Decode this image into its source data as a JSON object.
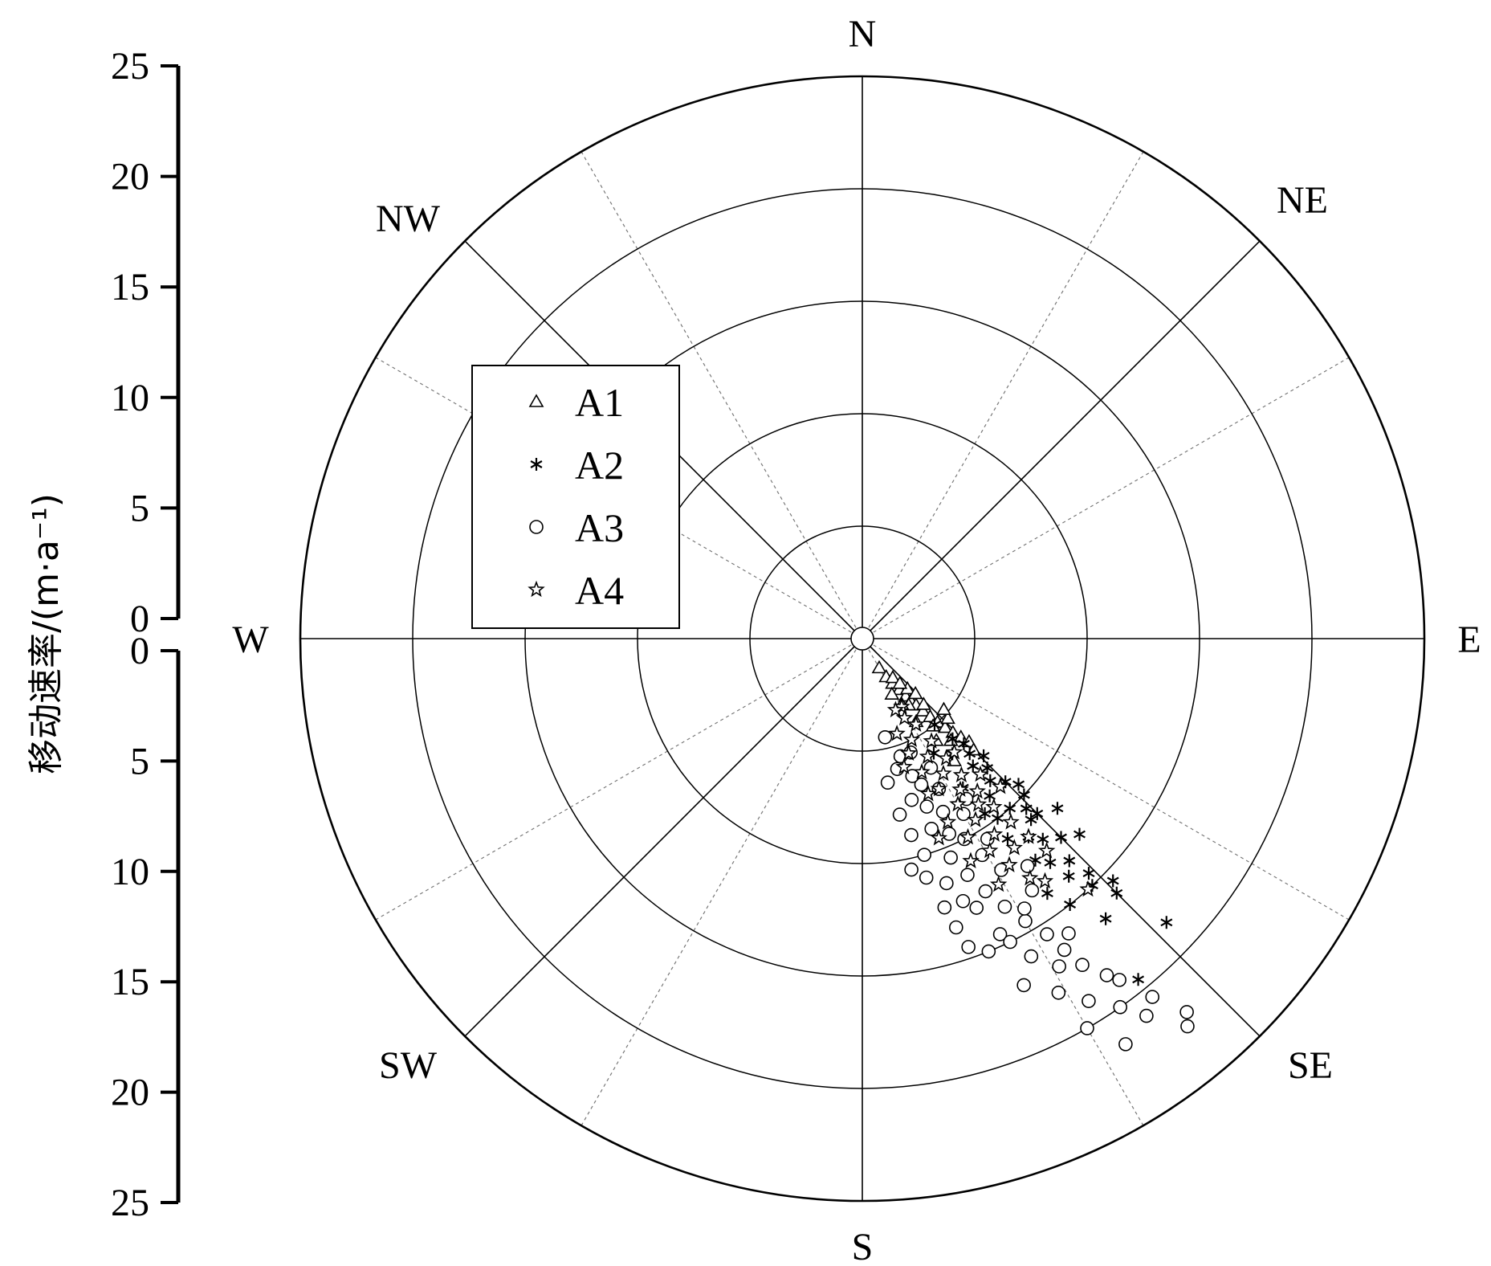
{
  "chart_data": {
    "type": "scatter",
    "coordinate_system": "polar",
    "ylabel": "移动速率/(m·a⁻¹)",
    "radius_range": [
      0,
      25
    ],
    "radius_ticks": [
      "0",
      "5",
      "10",
      "15",
      "20",
      "25"
    ],
    "directions": [
      "N",
      "NE",
      "E",
      "SE",
      "S",
      "SW",
      "W",
      "NW"
    ],
    "grid": true,
    "legend_placement": "upper-left",
    "series": [
      {
        "name": "A1",
        "marker": "triangle",
        "points": [
          [
            150,
            1.5
          ],
          [
            148,
            2.0
          ],
          [
            146,
            2.4
          ],
          [
            144,
            2.8
          ],
          [
            143,
            3.2
          ],
          [
            142,
            3.5
          ],
          [
            141,
            3.8
          ],
          [
            140,
            4.2
          ],
          [
            139,
            4.6
          ],
          [
            138,
            5.0
          ],
          [
            137,
            5.4
          ],
          [
            136,
            5.8
          ],
          [
            135,
            6.2
          ],
          [
            134,
            6.6
          ],
          [
            138,
            3.0
          ],
          [
            142,
            2.2
          ],
          [
            145,
            3.6
          ],
          [
            147,
            4.4
          ],
          [
            133,
            5.2
          ],
          [
            136,
            3.4
          ],
          [
            140,
            2.6
          ],
          [
            144,
            5.6
          ],
          [
            131,
            4.8
          ],
          [
            135,
            7.0
          ],
          [
            152,
            2.8
          ],
          [
            149,
            3.4
          ],
          [
            139,
            6.0
          ],
          [
            137,
            4.0
          ],
          [
            141,
            5.0
          ],
          [
            143,
            6.8
          ]
        ]
      },
      {
        "name": "A2",
        "marker": "asterisk",
        "points": [
          [
            140,
            5.0
          ],
          [
            138,
            6.0
          ],
          [
            137,
            7.0
          ],
          [
            136,
            8.0
          ],
          [
            135,
            9.0
          ],
          [
            134,
            10.0
          ],
          [
            136,
            10.5
          ],
          [
            137,
            11.0
          ],
          [
            138,
            12.0
          ],
          [
            135,
            12.5
          ],
          [
            137,
            13.5
          ],
          [
            136,
            14.5
          ],
          [
            134,
            15.5
          ],
          [
            135,
            16.0
          ],
          [
            139,
            16.5
          ],
          [
            133,
            18.5
          ],
          [
            141,
            19.5
          ],
          [
            142,
            6.5
          ],
          [
            139,
            7.5
          ],
          [
            141,
            9.0
          ],
          [
            143,
            10.0
          ],
          [
            140,
            11.5
          ],
          [
            142,
            12.5
          ],
          [
            144,
            14.0
          ],
          [
            138,
            8.5
          ],
          [
            140,
            13.0
          ],
          [
            133,
            9.5
          ],
          [
            135,
            11.0
          ],
          [
            146,
            8.0
          ],
          [
            144,
            11.0
          ],
          [
            139,
            14.0
          ],
          [
            132,
            13.0
          ],
          [
            137,
            15.0
          ],
          [
            148,
            6.0
          ],
          [
            145,
            9.5
          ],
          [
            134,
            7.5
          ],
          [
            131,
            11.5
          ],
          [
            142,
            15.0
          ],
          [
            136,
            6.5
          ],
          [
            139,
            10.0
          ]
        ]
      },
      {
        "name": "A3",
        "marker": "circle",
        "points": [
          [
            167,
            4.5
          ],
          [
            165,
            6.0
          ],
          [
            163,
            7.5
          ],
          [
            160,
            9.0
          ],
          [
            158,
            10.5
          ],
          [
            156,
            11.5
          ],
          [
            154,
            12.5
          ],
          [
            152,
            13.5
          ],
          [
            150,
            14.5
          ],
          [
            148,
            15.5
          ],
          [
            147,
            16.5
          ],
          [
            146,
            17.5
          ],
          [
            144,
            18.5
          ],
          [
            143,
            19.0
          ],
          [
            145,
            20.0
          ],
          [
            141,
            20.5
          ],
          [
            139,
            22.0
          ],
          [
            140,
            22.5
          ],
          [
            143,
            21.0
          ],
          [
            147,
            21.5
          ],
          [
            170,
            6.5
          ],
          [
            168,
            8.0
          ],
          [
            162,
            5.5
          ],
          [
            158,
            7.0
          ],
          [
            155,
            8.5
          ],
          [
            153,
            10.0
          ],
          [
            151,
            11.0
          ],
          [
            149,
            12.0
          ],
          [
            157,
            13.0
          ],
          [
            155,
            14.5
          ],
          [
            152,
            16.0
          ],
          [
            149,
            17.0
          ],
          [
            161,
            11.5
          ],
          [
            159,
            12.5
          ],
          [
            164,
            10.0
          ],
          [
            166,
            9.0
          ],
          [
            160,
            6.5
          ],
          [
            156,
            9.5
          ],
          [
            153,
            7.5
          ],
          [
            150,
            9.0
          ],
          [
            148,
            10.5
          ],
          [
            154,
            15.0
          ],
          [
            151,
            18.0
          ],
          [
            148,
            19.0
          ],
          [
            145,
            16.0
          ],
          [
            158,
            15.0
          ],
          [
            162,
            13.5
          ],
          [
            146,
            13.5
          ],
          [
            144,
            12.5
          ],
          [
            157,
            5.5
          ],
          [
            163,
            12.5
          ],
          [
            150,
            20.0
          ],
          [
            165,
            11.0
          ],
          [
            152,
            6.5
          ],
          [
            159,
            8.0
          ],
          [
            147,
            8.5
          ],
          [
            155,
            17.0
          ],
          [
            149,
            14.0
          ],
          [
            168,
            10.5
          ],
          [
            161,
            14.5
          ]
        ]
      },
      {
        "name": "A4",
        "marker": "star",
        "points": [
          [
            150,
            3.5
          ],
          [
            148,
            4.5
          ],
          [
            146,
            5.5
          ],
          [
            145,
            6.5
          ],
          [
            144,
            7.5
          ],
          [
            143,
            8.5
          ],
          [
            142,
            9.5
          ],
          [
            141,
            10.5
          ],
          [
            140,
            11.5
          ],
          [
            139,
            12.5
          ],
          [
            143,
            13.5
          ],
          [
            138,
            15.0
          ],
          [
            152,
            4.0
          ],
          [
            154,
            5.0
          ],
          [
            151,
            6.0
          ],
          [
            149,
            7.0
          ],
          [
            147,
            8.0
          ],
          [
            145,
            9.0
          ],
          [
            156,
            6.5
          ],
          [
            153,
            7.5
          ],
          [
            150,
            8.5
          ],
          [
            148,
            9.5
          ],
          [
            146,
            10.5
          ],
          [
            144,
            11.5
          ],
          [
            158,
            5.5
          ],
          [
            155,
            9.0
          ],
          [
            152,
            10.0
          ],
          [
            149,
            11.0
          ],
          [
            147,
            12.0
          ],
          [
            145,
            13.0
          ],
          [
            160,
            4.5
          ],
          [
            157,
            7.5
          ],
          [
            154,
            11.0
          ],
          [
            151,
            12.5
          ],
          [
            141,
            6.5
          ],
          [
            139,
            8.0
          ],
          [
            137,
            9.0
          ],
          [
            155,
            3.5
          ],
          [
            162,
            6.0
          ],
          [
            159,
            9.5
          ]
        ]
      }
    ]
  }
}
